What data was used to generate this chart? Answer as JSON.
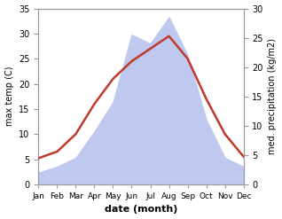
{
  "months": [
    "Jan",
    "Feb",
    "Mar",
    "Apr",
    "May",
    "Jun",
    "Jul",
    "Aug",
    "Sep",
    "Oct",
    "Nov",
    "Dec"
  ],
  "temperature": [
    5.2,
    6.5,
    10.0,
    16.0,
    21.0,
    24.5,
    27.0,
    29.5,
    25.0,
    17.0,
    10.0,
    5.5
  ],
  "precipitation": [
    2.0,
    3.0,
    4.5,
    9.0,
    14.0,
    25.5,
    24.0,
    28.5,
    22.0,
    11.0,
    4.5,
    3.0
  ],
  "temp_color": "#c0392b",
  "precip_fill_color": "#bfc8ef",
  "left_ylim": [
    0,
    35
  ],
  "right_ylim": [
    0,
    30
  ],
  "left_yticks": [
    0,
    5,
    10,
    15,
    20,
    25,
    30,
    35
  ],
  "right_yticks": [
    0,
    5,
    10,
    15,
    20,
    25,
    30
  ],
  "ylabel_left": "max temp (C)",
  "ylabel_right": "med. precipitation (kg/m2)",
  "xlabel": "date (month)",
  "bg_color": "#ffffff",
  "spine_color": "#999999",
  "temp_linewidth": 1.8
}
